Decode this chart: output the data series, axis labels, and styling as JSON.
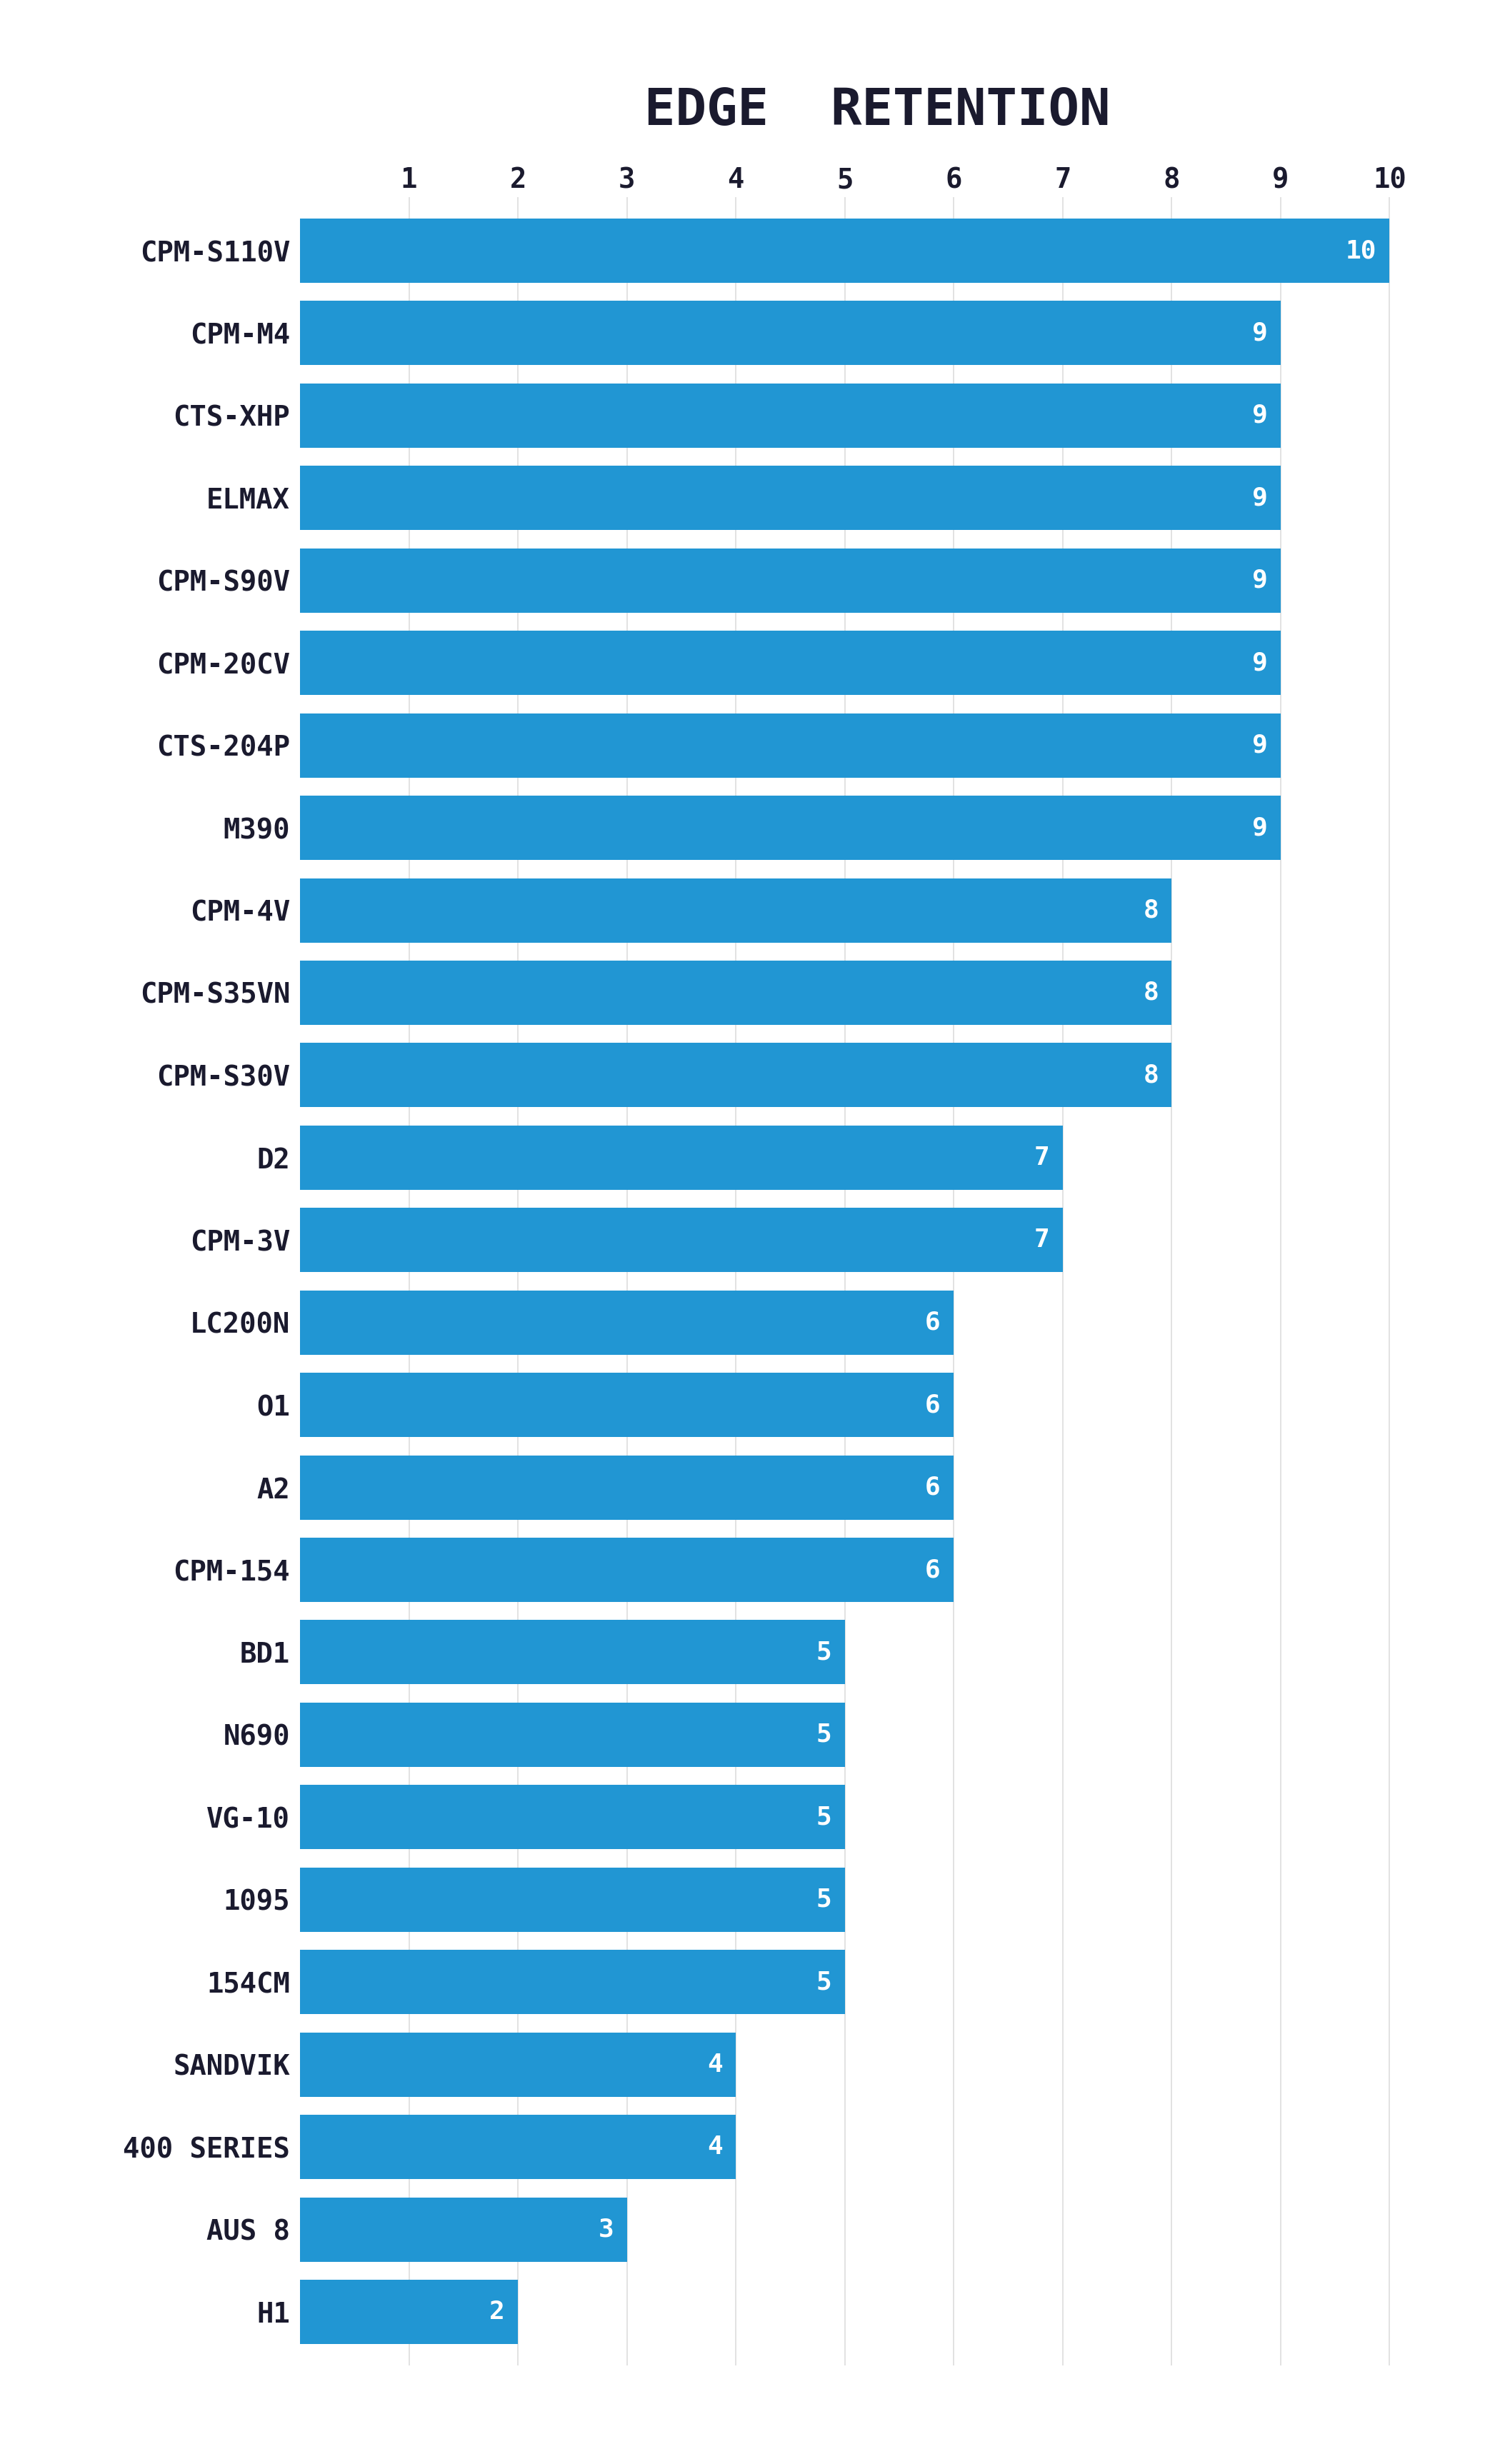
{
  "title": "EDGE  RETENTION",
  "background_color": "#ffffff",
  "bar_color": "#2196d3",
  "text_color": "#1a1a2e",
  "categories": [
    "CPM-S110V",
    "CPM-M4",
    "CTS-XHP",
    "ELMAX",
    "CPM-S90V",
    "CPM-20CV",
    "CTS-204P",
    "M390",
    "CPM-4V",
    "CPM-S35VN",
    "CPM-S30V",
    "D2",
    "CPM-3V",
    "LC200N",
    "O1",
    "A2",
    "CPM-154",
    "BD1",
    "N690",
    "VG-10",
    "1095",
    "154CM",
    "SANDVIK",
    "400 SERIES",
    "AUS 8",
    "H1"
  ],
  "values": [
    10,
    9,
    9,
    9,
    9,
    9,
    9,
    9,
    8,
    8,
    8,
    7,
    7,
    6,
    6,
    6,
    6,
    5,
    5,
    5,
    5,
    5,
    4,
    4,
    3,
    2
  ],
  "xticks": [
    1,
    2,
    3,
    4,
    5,
    6,
    7,
    8,
    9,
    10
  ],
  "title_fontsize": 52,
  "tick_fontsize": 28,
  "label_fontsize": 28,
  "value_fontsize": 26,
  "bar_height": 0.78,
  "grid_color": "#dddddd",
  "logo_bg": "#12192b",
  "logo_text_color": "#ffffff"
}
